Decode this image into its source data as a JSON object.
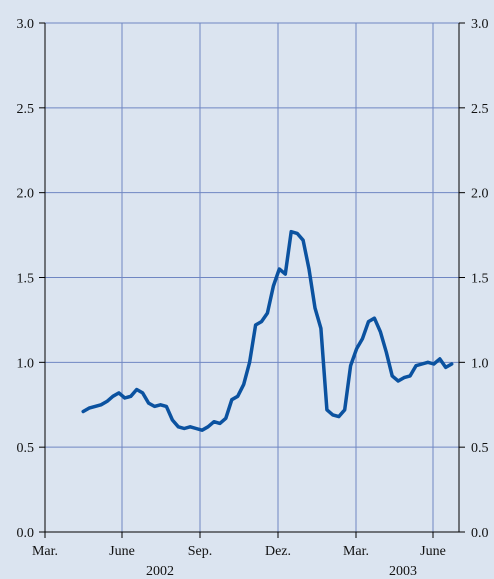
{
  "chart_data": {
    "type": "line",
    "title": "",
    "xlabel": "",
    "ylabel": "",
    "ylim": [
      0,
      3
    ],
    "y_ticks": [
      "0.0",
      "0.5",
      "1.0",
      "1.5",
      "2.0",
      "2.5",
      "3.0"
    ],
    "y_ticks_right": [
      "0.0",
      "0.5",
      "1.0",
      "1.5",
      "2.0",
      "2.5",
      "3.0"
    ],
    "x_ticks": [
      "Mar.",
      "June",
      "Sep.",
      "Dez.",
      "Mar.",
      "June"
    ],
    "x_year_labels": [
      "2002",
      "2003"
    ],
    "grid": true,
    "colors": {
      "background": "#dbe4f0",
      "line": "#0b52a0",
      "grid": "#6f86c2",
      "axis": "#000000"
    },
    "series": [
      {
        "x": [
          "2002-04-15",
          "2002-04-22",
          "2002-04-29",
          "2002-05-06",
          "2002-05-13",
          "2002-05-20",
          "2002-05-27",
          "2002-06-03",
          "2002-06-10",
          "2002-06-17",
          "2002-06-24",
          "2002-07-01",
          "2002-07-08",
          "2002-07-15",
          "2002-07-22",
          "2002-07-29",
          "2002-08-05",
          "2002-08-12",
          "2002-08-19",
          "2002-08-26",
          "2002-09-02",
          "2002-09-09",
          "2002-09-16",
          "2002-09-23",
          "2002-09-30",
          "2002-10-07",
          "2002-10-14",
          "2002-10-21",
          "2002-10-28",
          "2002-11-04",
          "2002-11-11",
          "2002-11-18",
          "2002-11-25",
          "2002-12-02",
          "2002-12-09",
          "2002-12-16",
          "2002-12-23",
          "2002-12-30",
          "2003-01-06",
          "2003-01-13",
          "2003-01-20",
          "2003-01-27",
          "2003-02-03",
          "2003-02-10",
          "2003-02-17",
          "2003-02-24",
          "2003-03-03",
          "2003-03-10",
          "2003-03-17",
          "2003-03-24",
          "2003-03-31",
          "2003-04-07",
          "2003-04-14",
          "2003-04-21",
          "2003-04-28",
          "2003-05-05",
          "2003-05-12",
          "2003-05-19",
          "2003-05-26",
          "2003-06-02",
          "2003-06-09",
          "2003-06-16",
          "2003-06-23"
        ],
        "values": [
          0.71,
          0.73,
          0.74,
          0.75,
          0.77,
          0.8,
          0.82,
          0.79,
          0.8,
          0.84,
          0.82,
          0.76,
          0.74,
          0.75,
          0.74,
          0.66,
          0.62,
          0.61,
          0.62,
          0.61,
          0.6,
          0.62,
          0.65,
          0.64,
          0.67,
          0.78,
          0.8,
          0.87,
          1.0,
          1.22,
          1.24,
          1.29,
          1.45,
          1.55,
          1.52,
          1.77,
          1.76,
          1.72,
          1.55,
          1.32,
          1.2,
          0.72,
          0.69,
          0.68,
          0.72,
          0.98,
          1.08,
          1.14,
          1.24,
          1.26,
          1.18,
          1.06,
          0.92,
          0.89,
          0.91,
          0.92,
          0.98,
          0.99,
          1.0,
          0.99,
          1.02,
          0.97,
          0.99
        ]
      }
    ]
  }
}
